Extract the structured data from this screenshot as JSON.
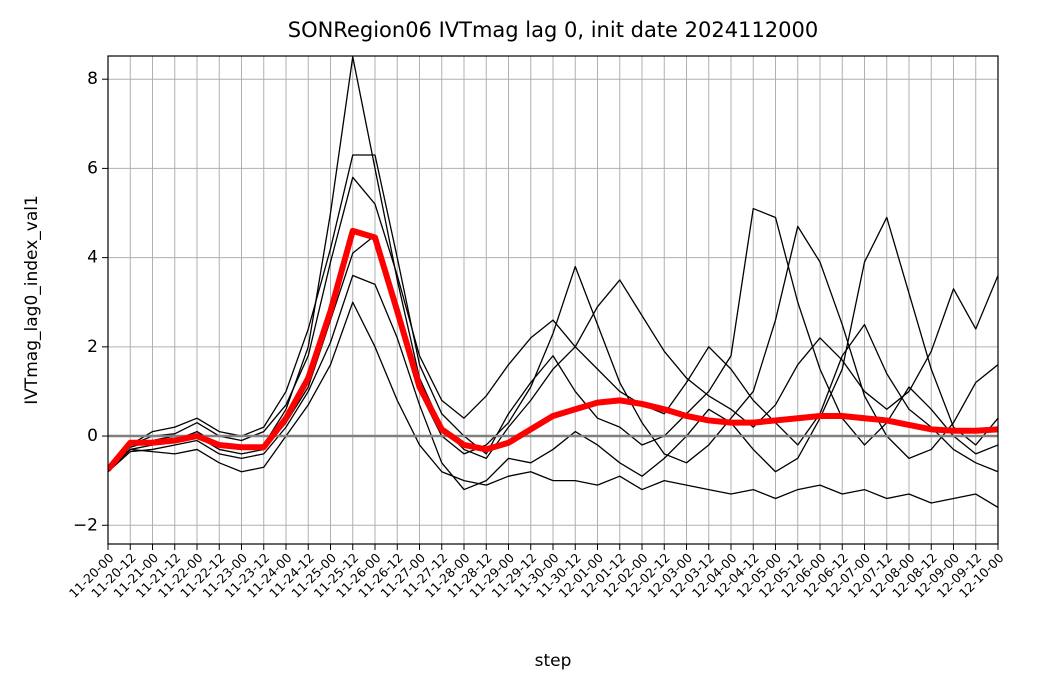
{
  "chart_data": {
    "type": "line",
    "title": "SONRegion06 IVTmag lag 0, init date 2024112000",
    "xlabel": "step",
    "ylabel": "IVTmag_lag0_index_val1",
    "categories": [
      "11-20-00",
      "11-20-12",
      "11-21-00",
      "11-21-12",
      "11-22-00",
      "11-22-12",
      "11-23-00",
      "11-23-12",
      "11-24-00",
      "11-24-12",
      "11-25-00",
      "11-25-12",
      "11-26-00",
      "11-26-12",
      "11-27-00",
      "11-27-12",
      "11-28-00",
      "11-28-12",
      "11-29-00",
      "11-29-12",
      "11-30-00",
      "11-30-12",
      "12-01-00",
      "12-01-12",
      "12-02-00",
      "12-02-12",
      "12-03-00",
      "12-03-12",
      "12-04-00",
      "12-04-12",
      "12-05-00",
      "12-05-12",
      "12-06-00",
      "12-06-12",
      "12-07-00",
      "12-07-12",
      "12-08-00",
      "12-08-12",
      "12-09-00",
      "12-09-12",
      "12-10-00"
    ],
    "ylim": [
      -2.42,
      8.52
    ],
    "yticks": [
      {
        "value": -2,
        "label": "−2"
      },
      0,
      2,
      4,
      6,
      8
    ],
    "grid": true,
    "hline": 0,
    "hline_color": "#808080",
    "series": [
      {
        "color": "#000000",
        "linewidth": 1.3,
        "values": [
          -0.7,
          -0.3,
          -0.2,
          -0.1,
          0.1,
          -0.2,
          -0.3,
          -0.2,
          0.6,
          2.0,
          5.0,
          8.5,
          6.0,
          3.5,
          1.3,
          0.2,
          -0.3,
          -0.5,
          0.2,
          0.8,
          1.5,
          2.0,
          1.5,
          1.0,
          0.7,
          0.5,
          1.2,
          2.0,
          1.5,
          0.8,
          0.3,
          -0.2,
          0.5,
          1.8,
          2.5,
          1.4,
          0.6,
          0.2,
          -0.3,
          -0.6,
          -0.8
        ]
      },
      {
        "color": "#000000",
        "linewidth": 1.3,
        "values": [
          -0.8,
          -0.3,
          -0.35,
          -0.4,
          -0.3,
          -0.6,
          -0.8,
          -0.7,
          0.0,
          0.7,
          1.6,
          3.0,
          2.0,
          0.8,
          -0.2,
          -0.8,
          -1.0,
          -1.1,
          -0.9,
          -0.8,
          -1.0,
          -1.0,
          -1.1,
          -0.9,
          -1.2,
          -1.0,
          -1.1,
          -1.2,
          -1.3,
          -1.2,
          -1.4,
          -1.2,
          -1.1,
          -1.3,
          -1.2,
          -1.4,
          -1.3,
          -1.5,
          -1.4,
          -1.3,
          -1.6
        ]
      },
      {
        "color": "#000000",
        "linewidth": 1.3,
        "values": [
          -0.75,
          -0.2,
          0.1,
          0.2,
          0.4,
          0.1,
          0.0,
          0.2,
          1.0,
          2.4,
          4.2,
          6.3,
          6.3,
          4.0,
          1.6,
          0.5,
          0.0,
          -0.4,
          0.5,
          1.2,
          1.8,
          1.0,
          0.4,
          0.2,
          -0.2,
          0.0,
          0.5,
          1.0,
          1.8,
          5.1,
          4.9,
          3.0,
          1.5,
          0.4,
          -0.2,
          0.3,
          1.1,
          0.6,
          0.0,
          -0.4,
          -0.2
        ]
      },
      {
        "color": "#000000",
        "linewidth": 1.3,
        "values": [
          -0.7,
          -0.25,
          -0.1,
          0.0,
          0.0,
          -0.3,
          -0.4,
          -0.3,
          0.3,
          1.1,
          2.6,
          4.1,
          4.5,
          2.9,
          1.0,
          0.0,
          -0.4,
          -0.2,
          0.3,
          1.1,
          2.3,
          3.8,
          2.5,
          1.2,
          0.3,
          -0.4,
          -0.6,
          -0.2,
          0.4,
          1.0,
          2.6,
          4.7,
          3.9,
          2.5,
          0.9,
          0.0,
          -0.5,
          -0.3,
          0.3,
          1.2,
          1.6
        ]
      },
      {
        "color": "#000000",
        "linewidth": 1.3,
        "values": [
          -0.8,
          -0.35,
          -0.3,
          -0.2,
          -0.1,
          -0.4,
          -0.5,
          -0.4,
          0.2,
          1.0,
          2.1,
          3.6,
          3.4,
          2.2,
          0.7,
          -0.6,
          -1.2,
          -1.0,
          -0.5,
          -0.6,
          -0.3,
          0.1,
          -0.2,
          -0.6,
          -0.9,
          -0.5,
          0.0,
          0.6,
          0.3,
          -0.3,
          -0.8,
          -0.5,
          0.4,
          1.5,
          3.9,
          4.9,
          3.2,
          1.5,
          0.2,
          -0.2,
          0.4
        ]
      },
      {
        "color": "#000000",
        "linewidth": 1.3,
        "values": [
          -0.72,
          -0.2,
          0.0,
          0.05,
          0.3,
          0.0,
          -0.1,
          0.1,
          0.7,
          1.8,
          3.9,
          5.8,
          5.2,
          3.6,
          1.8,
          0.8,
          0.4,
          0.9,
          1.6,
          2.2,
          2.6,
          2.0,
          2.9,
          3.5,
          2.7,
          1.9,
          1.3,
          0.9,
          0.6,
          0.2,
          0.7,
          1.6,
          2.2,
          1.7,
          1.0,
          0.6,
          1.0,
          1.9,
          3.3,
          2.4,
          3.6
        ]
      },
      {
        "color": "#ff0000",
        "linewidth": 6,
        "values": [
          -0.75,
          -0.15,
          -0.15,
          -0.1,
          0.0,
          -0.2,
          -0.25,
          -0.25,
          0.4,
          1.3,
          2.8,
          4.6,
          4.45,
          2.8,
          1.1,
          0.15,
          -0.2,
          -0.3,
          -0.15,
          0.15,
          0.45,
          0.6,
          0.75,
          0.8,
          0.72,
          0.6,
          0.45,
          0.35,
          0.3,
          0.3,
          0.35,
          0.4,
          0.45,
          0.45,
          0.4,
          0.35,
          0.25,
          0.15,
          0.12,
          0.12,
          0.15
        ]
      }
    ]
  }
}
